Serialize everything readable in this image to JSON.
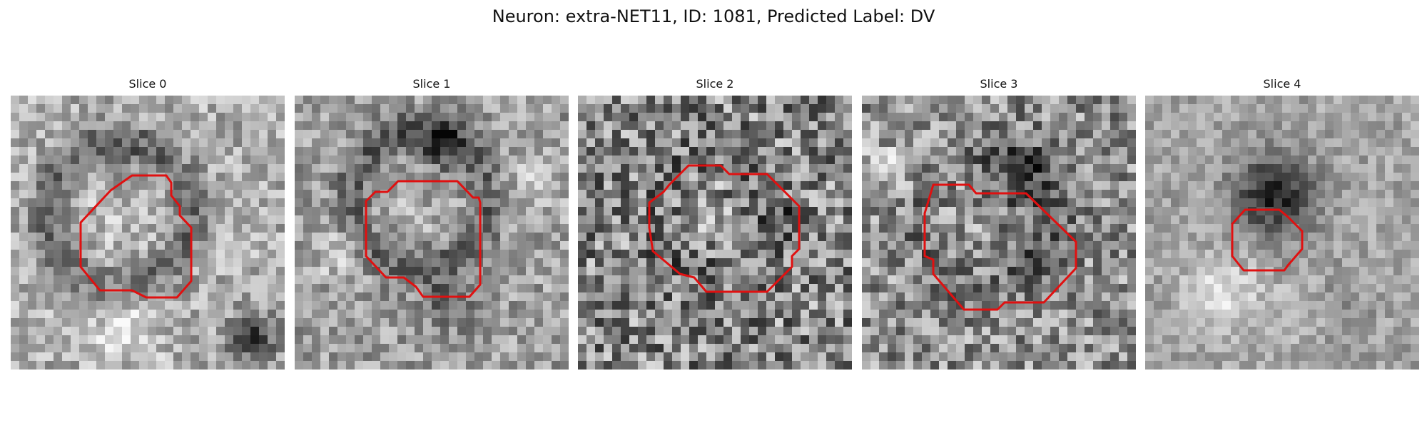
{
  "figure": {
    "title": "Neuron: extra-NET11, ID: 1081, Predicted Label: DV"
  },
  "colors": {
    "contour": "#e01010",
    "background": "#ffffff"
  },
  "slices": [
    {
      "title": "Slice 0"
    },
    {
      "title": "Slice 1"
    },
    {
      "title": "Slice 2"
    },
    {
      "title": "Slice 3"
    },
    {
      "title": "Slice 4"
    }
  ]
}
